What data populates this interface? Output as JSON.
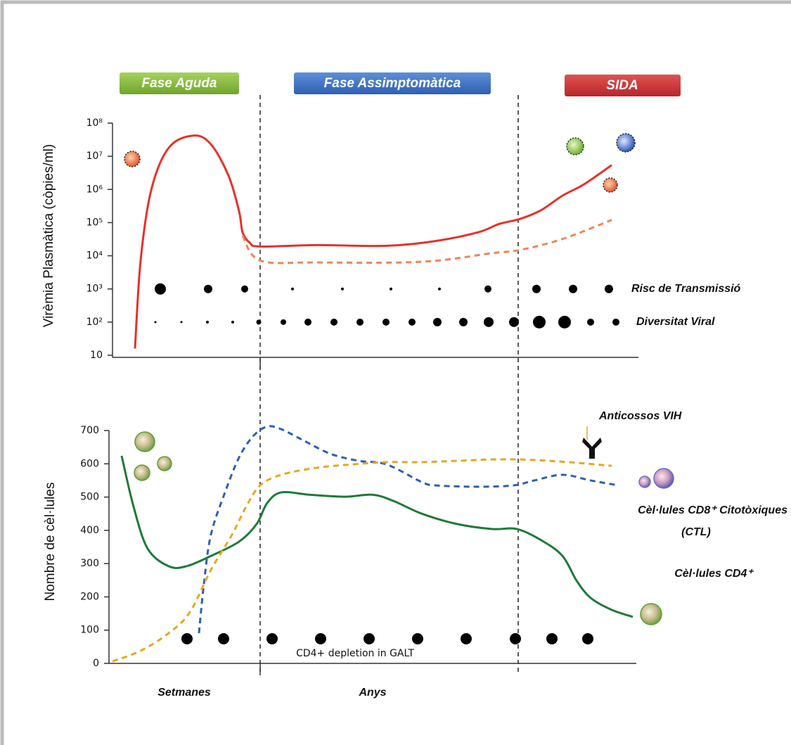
{
  "phases": [
    "Fase Aguda",
    "Fase Assimptomàtica",
    "SIDA"
  ],
  "time_labels": [
    "Setmanes",
    "Anys"
  ],
  "chart_data": [
    {
      "type": "line",
      "ylabel": "Virèmia Plasmàtica (còpies/ml)",
      "log_scale": true,
      "xlim": [
        0,
        750
      ],
      "ylim": [
        10,
        100000000
      ],
      "yticks": [
        10,
        {
          "value": 100,
          "label": "10²"
        },
        {
          "value": 1000,
          "label": "10³"
        },
        {
          "value": 10000,
          "label": "10⁴"
        },
        {
          "value": 100000,
          "label": "10⁵"
        },
        {
          "value": 1000000,
          "label": "10⁶"
        },
        {
          "value": 10000000,
          "label": "10⁷"
        },
        {
          "value": 100000000,
          "label": "10⁸"
        }
      ],
      "series": [
        {
          "color": "#e8302a",
          "dashed": false,
          "x": [
            32,
            40,
            55,
            80,
            115,
            140,
            165,
            180,
            185,
            195,
            210,
            290,
            390,
            460,
            520,
            550,
            580,
            610,
            640,
            670,
            710
          ],
          "values": [
            16,
            7200,
            950000,
            18000000,
            42000000,
            23000000,
            2600000,
            220000,
            51000,
            25000,
            19000,
            21000,
            20000,
            28000,
            51000,
            91000,
            130000,
            240000,
            650000,
            1400000,
            5400000
          ]
        },
        {
          "color": "#f0845a",
          "dashed": true,
          "x": [
            185,
            210,
            290,
            440,
            540,
            580,
            640,
            710
          ],
          "values": [
            40000,
            7200,
            6300,
            6600,
            12000,
            15000,
            32000,
            120000
          ]
        }
      ],
      "dot_rows": [
        {
          "label": "Risc de Transmissió",
          "y": 1000,
          "x": [
            68,
            136,
            188,
            256,
            327,
            396,
            465,
            534,
            603,
            655,
            706
          ],
          "sizes": [
            8,
            6,
            5,
            2,
            2,
            2,
            2,
            5,
            6,
            6,
            6
          ]
        },
        {
          "label": "Diversitat Viral",
          "y": 100,
          "x": [
            61,
            98,
            135,
            171,
            208,
            243,
            278,
            315,
            352,
            389,
            426,
            462,
            499,
            535,
            571,
            607,
            643,
            680,
            716
          ],
          "sizes": [
            1.5,
            1.5,
            2,
            2,
            3.5,
            4,
            5,
            5,
            5,
            5,
            5,
            6,
            6,
            7,
            7,
            9,
            9,
            5,
            5
          ]
        }
      ]
    },
    {
      "type": "line",
      "ylabel": "Nombre de cèl·lules",
      "xlim": [
        0,
        750
      ],
      "ylim": [
        0,
        700
      ],
      "yticks": [
        0,
        100,
        200,
        300,
        400,
        500,
        600,
        700
      ],
      "series": [
        {
          "color": "#1e7a3a",
          "dashed": false,
          "x": [
            13,
            30,
            50,
            80,
            105,
            140,
            180,
            205,
            220,
            240,
            280,
            330,
            370,
            400,
            440,
            490,
            540,
            575,
            610,
            640,
            660,
            680,
            710,
            740
          ],
          "values": [
            624,
            471,
            345,
            292,
            292,
            323,
            366,
            419,
            482,
            514,
            507,
            501,
            507,
            488,
            450,
            419,
            404,
            404,
            370,
            323,
            249,
            197,
            161,
            140
          ]
        },
        {
          "color": "#2f5fb3",
          "dashed": true,
          "x": [
            123,
            130,
            140,
            160,
            180,
            200,
            220,
            240,
            270,
            310,
            350,
            390,
            440,
            460,
            520,
            570,
            600,
            640,
            680,
            720
          ],
          "values": [
            91,
            239,
            387,
            514,
            619,
            683,
            712,
            704,
            672,
            630,
            609,
            598,
            545,
            535,
            531,
            535,
            550,
            567,
            550,
            535
          ]
        },
        {
          "color": "#e6a820",
          "dashed": true,
          "x": [
            0,
            40,
            80,
            110,
            140,
            170,
            190,
            210,
            240,
            290,
            340,
            390,
            440,
            490,
            540,
            580,
            620,
            660,
            710
          ],
          "values": [
            6,
            38,
            91,
            154,
            281,
            387,
            471,
            535,
            567,
            588,
            598,
            605,
            605,
            609,
            613,
            613,
            609,
            603,
            594
          ]
        }
      ],
      "markers": {
        "x": [
          106,
          158,
          227,
          296,
          365,
          434,
          503,
          573,
          625,
          676
        ],
        "values": [
          74,
          74,
          74,
          74,
          74,
          74,
          74,
          74,
          74,
          74
        ]
      },
      "annotations": [
        "CD4+ depletion in GALT",
        "Anticossos VIH",
        "Cèl·lules CD8⁺ Citotòxiques",
        "(CTL)",
        "Cèl·lules CD4⁺"
      ]
    }
  ]
}
